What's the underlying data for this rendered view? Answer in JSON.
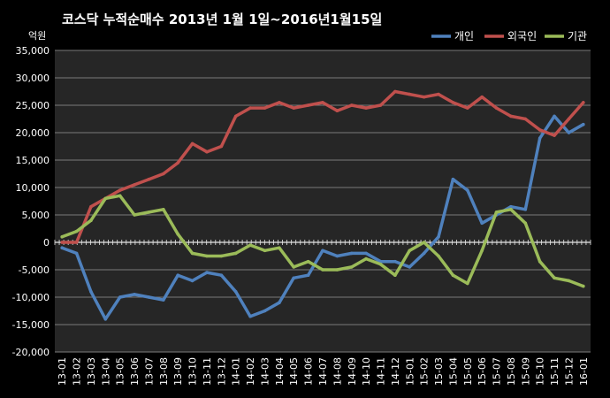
{
  "chart_data": {
    "type": "line",
    "title": "코스닥  누적순매수 2013년 1월 1일~2016년1월15일",
    "ylabel": "억원",
    "ylim": [
      -20000,
      35000
    ],
    "yticks": [
      "35,000",
      "30,000",
      "25,000",
      "20,000",
      "15,000",
      "10,000",
      "5,000",
      "0",
      "-5,000",
      "-10,000",
      "-15,000",
      "-20,000"
    ],
    "ytick_values": [
      35000,
      30000,
      25000,
      20000,
      15000,
      10000,
      5000,
      0,
      -5000,
      -10000,
      -15000,
      -20000
    ],
    "categories": [
      "13-01",
      "13-02",
      "13-03",
      "13-04",
      "13-05",
      "13-06",
      "13-07",
      "13-08",
      "13-09",
      "13-10",
      "13-11",
      "13-12",
      "14-01",
      "14-02",
      "14-03",
      "14-04",
      "14-05",
      "14-06",
      "14-07",
      "14-08",
      "14-09",
      "14-10",
      "14-11",
      "14-12",
      "15-01",
      "15-02",
      "15-03",
      "15-04",
      "15-05",
      "15-06",
      "15-07",
      "15-08",
      "15-09",
      "15-10",
      "15-11",
      "15-12",
      "16-01"
    ],
    "grid": true,
    "legend_position": "top-right",
    "colors": {
      "background": "#000000",
      "plot_background": "#262626",
      "gridline": "#7a7a7a",
      "text": "#ffffff"
    },
    "series": [
      {
        "name": "개인",
        "color": "#4f81bd",
        "values": [
          -1000,
          -2000,
          -9000,
          -14000,
          -10000,
          -9500,
          -10000,
          -10500,
          -6000,
          -7000,
          -5500,
          -6000,
          -9000,
          -13500,
          -12500,
          -11000,
          -6500,
          -6000,
          -1500,
          -2500,
          -2000,
          -2000,
          -3500,
          -3500,
          -4500,
          -2000,
          1000,
          11500,
          9500,
          3500,
          5000,
          6500,
          6000,
          19000,
          23000,
          20000,
          21500
        ]
      },
      {
        "name": "외국인",
        "color": "#c0504d",
        "values": [
          0,
          0,
          6500,
          8000,
          9500,
          10500,
          11500,
          12500,
          14500,
          18000,
          16500,
          17500,
          23000,
          24500,
          24500,
          25500,
          24500,
          25000,
          25500,
          24000,
          25000,
          24500,
          25000,
          27500,
          27000,
          26500,
          27000,
          25500,
          24500,
          26500,
          24500,
          23000,
          22500,
          20500,
          19500,
          22500,
          25500
        ]
      },
      {
        "name": "기관",
        "color": "#9bbb59",
        "values": [
          1000,
          2000,
          4000,
          8000,
          8500,
          5000,
          5500,
          6000,
          1500,
          -2000,
          -2500,
          -2500,
          -2000,
          -500,
          -1500,
          -1000,
          -4500,
          -3500,
          -5000,
          -5000,
          -4500,
          -3000,
          -4000,
          -6000,
          -1500,
          0,
          -2500,
          -6000,
          -7500,
          -1500,
          5500,
          6000,
          3500,
          -3500,
          -6500,
          -7000,
          -8000
        ]
      }
    ]
  }
}
